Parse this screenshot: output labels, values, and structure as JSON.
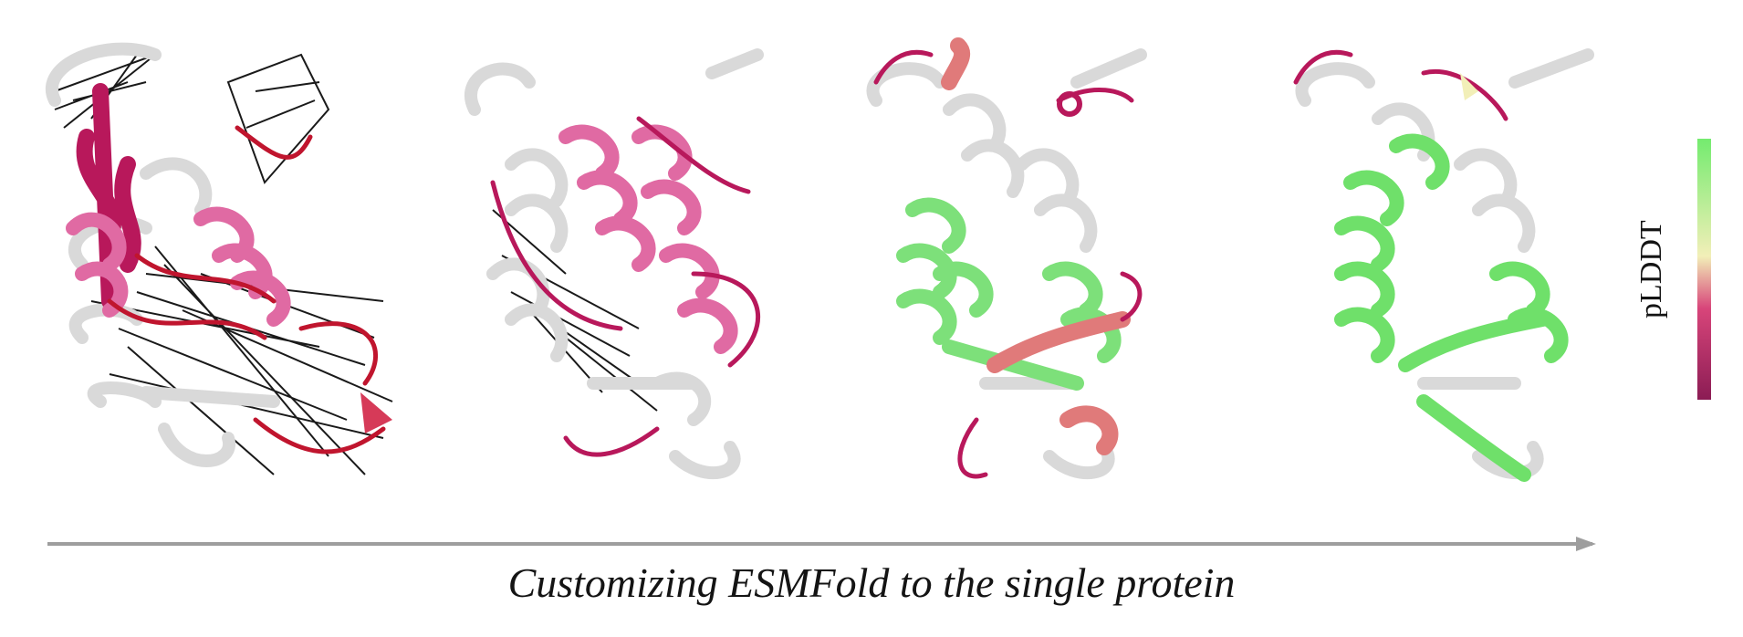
{
  "caption": "Customizing ESMFold to the single protein",
  "legend": {
    "label": "pLDDT",
    "gradient_colors": [
      "#8b1c54",
      "#d8457a",
      "#f2efb8",
      "#74eb6f"
    ]
  },
  "structures": [
    {
      "name": "structure-1",
      "dominant_colors": [
        "#d9d9d9",
        "#b8185b",
        "#e06aa3",
        "#c0152e"
      ]
    },
    {
      "name": "structure-2",
      "dominant_colors": [
        "#d9d9d9",
        "#e06aa3",
        "#b8185b"
      ]
    },
    {
      "name": "structure-3",
      "dominant_colors": [
        "#d9d9d9",
        "#7de07a",
        "#e07a7a",
        "#b8185b"
      ]
    },
    {
      "name": "structure-4",
      "dominant_colors": [
        "#d9d9d9",
        "#6fe06a",
        "#b8185b"
      ]
    }
  ],
  "arrow_color": "#9e9e9e"
}
